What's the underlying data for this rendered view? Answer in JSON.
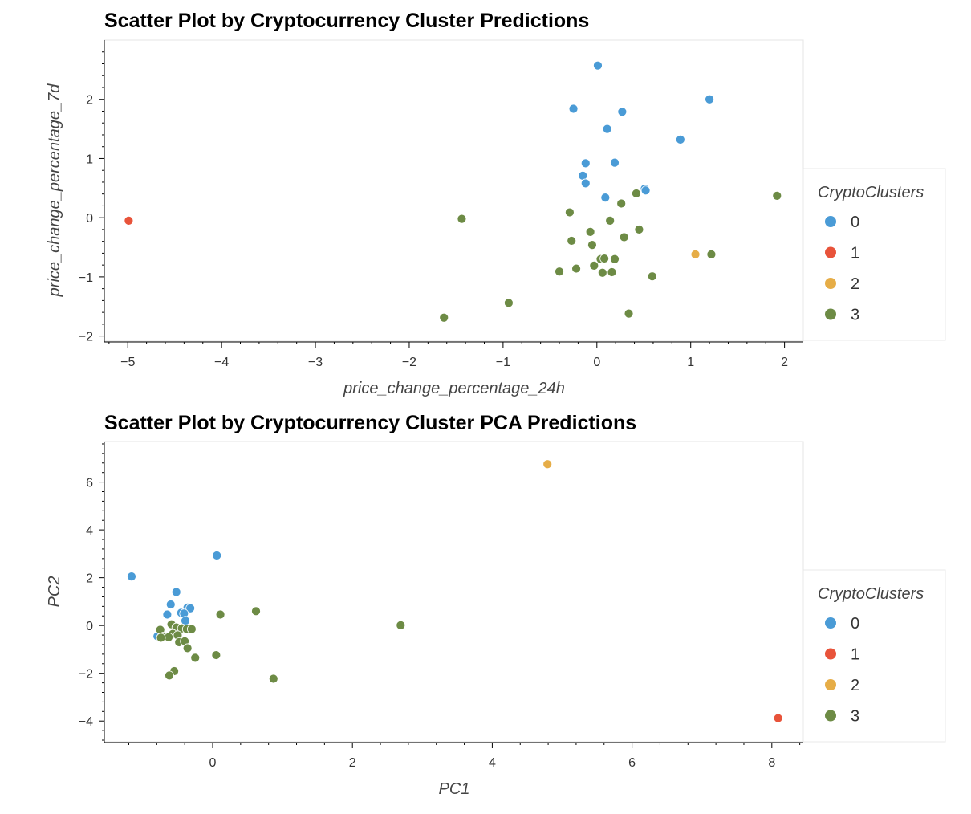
{
  "colors": {
    "cluster_0": "#4a9bd6",
    "cluster_1": "#e8533a",
    "cluster_2": "#e6ad47",
    "cluster_3": "#6d8b45",
    "frame": "#e5e5e5",
    "axis": "#000000"
  },
  "chart_data": [
    {
      "type": "scatter",
      "title": "Scatter Plot by Cryptocurrency Cluster Predictions",
      "xlabel": "price_change_percentage_24h",
      "ylabel": "price_change_percentage_7d",
      "xlim": [
        -5.25,
        2.2
      ],
      "ylim": [
        -2.1,
        3.0
      ],
      "xticks": [
        -5,
        -4,
        -3,
        -2,
        -1,
        0,
        1,
        2
      ],
      "yticks": [
        -2,
        -1,
        0,
        1,
        2
      ],
      "xtick_labels": [
        "−5",
        "−4",
        "−3",
        "−2",
        "−1",
        "0",
        "1",
        "2"
      ],
      "ytick_labels": [
        "−2",
        "−1",
        "0",
        "1",
        "2"
      ],
      "grid": false,
      "legend_title": "CryptoClusters",
      "legend_position": "right",
      "series": [
        {
          "name": "0",
          "color": "#4a9bd6",
          "points": [
            [
              0.01,
              2.57
            ],
            [
              1.2,
              2.0
            ],
            [
              -0.25,
              1.84
            ],
            [
              0.27,
              1.79
            ],
            [
              0.11,
              1.5
            ],
            [
              0.89,
              1.32
            ],
            [
              -0.12,
              0.92
            ],
            [
              0.19,
              0.93
            ],
            [
              -0.15,
              0.71
            ],
            [
              -0.12,
              0.58
            ],
            [
              0.51,
              0.49
            ],
            [
              0.52,
              0.46
            ],
            [
              0.09,
              0.34
            ]
          ]
        },
        {
          "name": "1",
          "color": "#e8533a",
          "points": [
            [
              -4.99,
              -0.05
            ]
          ]
        },
        {
          "name": "2",
          "color": "#e6ad47",
          "points": [
            [
              1.05,
              -0.62
            ]
          ]
        },
        {
          "name": "3",
          "color": "#6d8b45",
          "points": [
            [
              1.92,
              0.37
            ],
            [
              0.42,
              0.41
            ],
            [
              0.26,
              0.24
            ],
            [
              -0.29,
              0.09
            ],
            [
              -1.44,
              -0.02
            ],
            [
              0.14,
              -0.05
            ],
            [
              0.45,
              -0.2
            ],
            [
              -0.07,
              -0.24
            ],
            [
              0.29,
              -0.33
            ],
            [
              -0.27,
              -0.39
            ],
            [
              -0.05,
              -0.46
            ],
            [
              0.19,
              -0.7
            ],
            [
              0.04,
              -0.7
            ],
            [
              0.08,
              -0.69
            ],
            [
              1.22,
              -0.62
            ],
            [
              -0.03,
              -0.81
            ],
            [
              -0.22,
              -0.86
            ],
            [
              -0.4,
              -0.91
            ],
            [
              0.06,
              -0.93
            ],
            [
              0.16,
              -0.92
            ],
            [
              0.59,
              -0.99
            ],
            [
              -0.94,
              -1.44
            ],
            [
              0.34,
              -1.62
            ],
            [
              -1.63,
              -1.69
            ]
          ]
        }
      ]
    },
    {
      "type": "scatter",
      "title": "Scatter Plot by Cryptocurrency Cluster PCA Predictions",
      "xlabel": "PC1",
      "ylabel": "PC2",
      "xlim": [
        -1.55,
        8.45
      ],
      "ylim": [
        -4.9,
        7.7
      ],
      "xticks": [
        0,
        2,
        4,
        6,
        8
      ],
      "yticks": [
        -4,
        -2,
        0,
        2,
        4,
        6
      ],
      "xtick_labels": [
        "0",
        "2",
        "4",
        "6",
        "8"
      ],
      "ytick_labels": [
        "−4",
        "−2",
        "0",
        "2",
        "4",
        "6"
      ],
      "grid": false,
      "legend_title": "CryptoClusters",
      "legend_position": "right",
      "series": [
        {
          "name": "0",
          "color": "#4a9bd6",
          "points": [
            [
              0.06,
              2.93
            ],
            [
              -1.16,
              2.05
            ],
            [
              -0.52,
              1.4
            ],
            [
              -0.6,
              0.88
            ],
            [
              -0.36,
              0.75
            ],
            [
              -0.32,
              0.72
            ],
            [
              -0.45,
              0.53
            ],
            [
              -0.65,
              0.46
            ],
            [
              -0.41,
              0.5
            ],
            [
              -0.39,
              0.2
            ],
            [
              -0.79,
              -0.45
            ]
          ]
        },
        {
          "name": "1",
          "color": "#e8533a",
          "points": [
            [
              8.09,
              -3.88
            ]
          ]
        },
        {
          "name": "2",
          "color": "#e6ad47",
          "points": [
            [
              4.79,
              6.75
            ]
          ]
        },
        {
          "name": "3",
          "color": "#6d8b45",
          "points": [
            [
              0.11,
              0.46
            ],
            [
              0.62,
              0.6
            ],
            [
              2.69,
              0.01
            ],
            [
              -0.59,
              0.05
            ],
            [
              -0.52,
              -0.08
            ],
            [
              -0.44,
              -0.12
            ],
            [
              -0.37,
              -0.15
            ],
            [
              -0.3,
              -0.15
            ],
            [
              -0.75,
              -0.18
            ],
            [
              -0.57,
              -0.35
            ],
            [
              -0.5,
              -0.41
            ],
            [
              -0.7,
              -0.46
            ],
            [
              -0.63,
              -0.49
            ],
            [
              -0.74,
              -0.51
            ],
            [
              -0.48,
              -0.7
            ],
            [
              -0.4,
              -0.66
            ],
            [
              -0.36,
              -0.95
            ],
            [
              -0.25,
              -1.35
            ],
            [
              0.05,
              -1.24
            ],
            [
              -0.55,
              -1.91
            ],
            [
              -0.62,
              -2.09
            ],
            [
              0.87,
              -2.23
            ]
          ]
        }
      ]
    }
  ]
}
